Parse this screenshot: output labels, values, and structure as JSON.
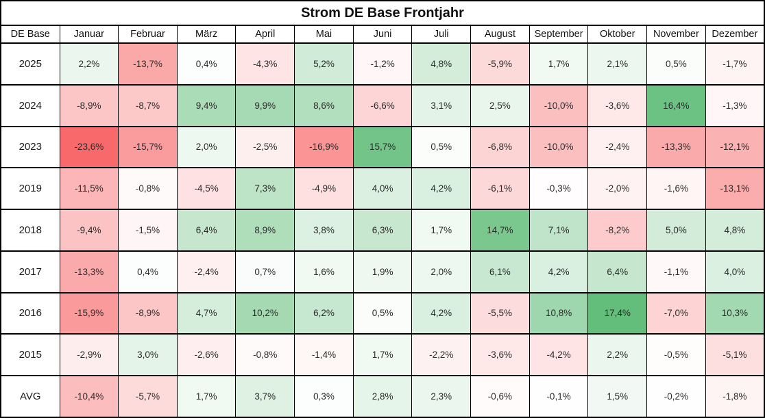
{
  "title": "Strom DE Base Frontjahr",
  "chart_data": {
    "type": "heatmap",
    "title": "Strom DE Base Frontjahr",
    "corner_label": "DE Base",
    "columns": [
      "Januar",
      "Februar",
      "März",
      "April",
      "Mai",
      "Juni",
      "Juli",
      "August",
      "September",
      "Oktober",
      "November",
      "Dezember"
    ],
    "rows": [
      {
        "label": "2025",
        "values": [
          2.2,
          -13.7,
          0.4,
          -4.3,
          5.2,
          -1.2,
          4.8,
          -5.9,
          1.7,
          2.1,
          0.5,
          -1.7
        ]
      },
      {
        "label": "2024",
        "values": [
          -8.9,
          -8.7,
          9.4,
          9.9,
          8.6,
          -6.6,
          3.1,
          2.5,
          -10.0,
          -3.6,
          16.4,
          -1.3
        ]
      },
      {
        "label": "2023",
        "values": [
          -23.6,
          -15.7,
          2.0,
          -2.5,
          -16.9,
          15.7,
          0.5,
          -6.8,
          -10.0,
          -2.4,
          -13.3,
          -12.1
        ]
      },
      {
        "label": "2019",
        "values": [
          -11.5,
          -0.8,
          -4.5,
          7.3,
          -4.9,
          4.0,
          4.2,
          -6.1,
          -0.3,
          -2.0,
          -1.6,
          -13.1
        ]
      },
      {
        "label": "2018",
        "values": [
          -9.4,
          -1.5,
          6.4,
          8.9,
          3.8,
          6.3,
          1.7,
          14.7,
          7.1,
          -8.2,
          5.0,
          4.8
        ]
      },
      {
        "label": "2017",
        "values": [
          -13.3,
          0.4,
          -2.4,
          0.7,
          1.6,
          1.9,
          2.0,
          6.1,
          4.2,
          6.4,
          -1.1,
          4.0
        ]
      },
      {
        "label": "2016",
        "values": [
          -15.9,
          -8.9,
          4.7,
          10.2,
          6.2,
          0.5,
          4.2,
          -5.5,
          10.8,
          17.4,
          -7.0,
          10.3
        ]
      },
      {
        "label": "2015",
        "values": [
          -2.9,
          3.0,
          -2.6,
          -0.8,
          -1.4,
          1.7,
          -2.2,
          -3.6,
          -4.2,
          2.2,
          -0.5,
          -5.1
        ]
      },
      {
        "label": "AVG",
        "values": [
          -10.4,
          -5.7,
          1.7,
          3.7,
          0.3,
          2.8,
          2.3,
          -0.6,
          -0.1,
          1.5,
          -0.2,
          -1.8
        ]
      }
    ],
    "value_suffix": "%",
    "decimal_separator": ",",
    "colorscale": {
      "min": -23.6,
      "mid": 0,
      "max": 17.4,
      "min_color": "#F8696B",
      "mid_color": "#FFFFFF",
      "max_color": "#63BE7B"
    },
    "border_color": "#000000",
    "text_color": "#2b2b2b"
  }
}
